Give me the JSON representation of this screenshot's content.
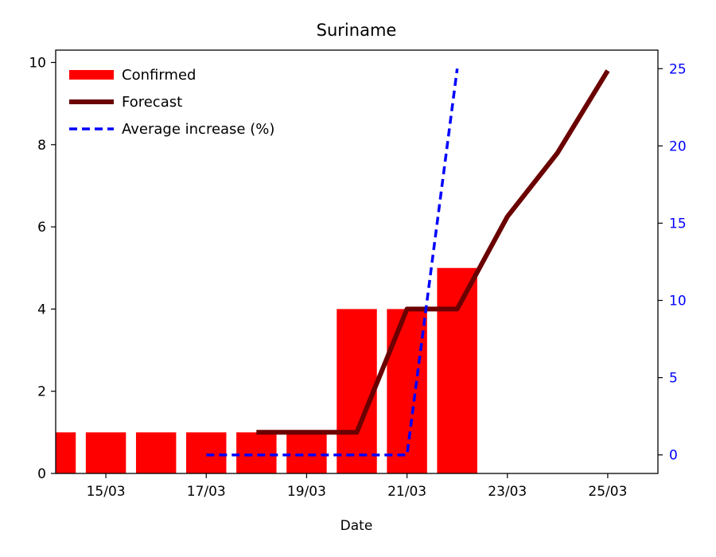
{
  "chart_data": {
    "type": "bar",
    "title": "Suriname",
    "xlabel": "Date",
    "ylabel": "",
    "ylabel_right": "",
    "x_range": [
      "14/03",
      "26/03"
    ],
    "ylim": [
      0,
      10.3
    ],
    "ylim_right": [
      -1.2,
      26.2
    ],
    "x_ticks": [
      "15/03",
      "17/03",
      "19/03",
      "21/03",
      "23/03",
      "25/03"
    ],
    "y_ticks": [
      0,
      2,
      4,
      6,
      8,
      10
    ],
    "y_ticks_right": [
      0,
      5,
      10,
      15,
      20,
      25
    ],
    "legend_position": "upper-left",
    "grid": false,
    "series": [
      {
        "name": "Confirmed",
        "kind": "bar",
        "axis": "left",
        "color": "#ff0000",
        "x": [
          "14/03",
          "15/03",
          "16/03",
          "17/03",
          "18/03",
          "19/03",
          "20/03",
          "21/03",
          "22/03"
        ],
        "values": [
          1,
          1,
          1,
          1,
          1,
          1,
          4,
          4,
          5
        ]
      },
      {
        "name": "Forecast",
        "kind": "line",
        "axis": "left",
        "color": "#6b0000",
        "x": [
          "18/03",
          "19/03",
          "20/03",
          "21/03",
          "22/03",
          "23/03",
          "24/03",
          "25/03"
        ],
        "values": [
          1.0,
          1.0,
          1.0,
          4.0,
          4.0,
          6.25,
          7.8,
          9.8
        ]
      },
      {
        "name": "Average increase (%)",
        "kind": "dashed-line",
        "axis": "right",
        "color": "#0000ff",
        "x": [
          "17/03",
          "18/03",
          "19/03",
          "20/03",
          "21/03",
          "22/03"
        ],
        "values": [
          0,
          0,
          0,
          0,
          0,
          25
        ]
      }
    ]
  }
}
